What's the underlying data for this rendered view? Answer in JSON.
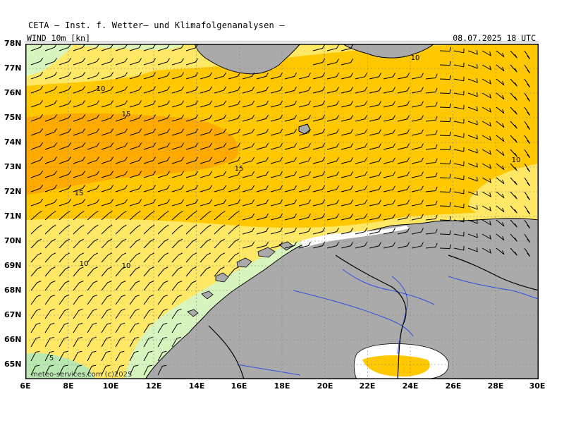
{
  "header": {
    "title": "CETA — Inst. f. Wetter— und Klimafolgenanalysen —",
    "field_label": "WIND 10m [kn]",
    "valid_time": "08.07.2025 18 UTC"
  },
  "credit": "meteo-services.com (c)2025",
  "axes": {
    "lat_labels": [
      "78N",
      "77N",
      "76N",
      "75N",
      "74N",
      "73N",
      "72N",
      "71N",
      "70N",
      "69N",
      "68N",
      "67N",
      "66N",
      "65N"
    ],
    "lon_labels": [
      "6E",
      "8E",
      "10E",
      "12E",
      "14E",
      "16E",
      "18E",
      "20E",
      "22E",
      "24E",
      "26E",
      "28E",
      "30E"
    ]
  },
  "legend_colors": {
    "lt5": "#b8e8b0",
    "kn5_10": "#d8f5c0",
    "kn10_15": "#ffe866",
    "kn15_20": "#ffc800",
    "kn20_25": "#ffaa00",
    "land": "#aaaaaa",
    "river": "#3050e0"
  },
  "contour_labels": [
    {
      "value": "10"
    },
    {
      "value": "15"
    },
    {
      "value": "15"
    },
    {
      "value": "15"
    },
    {
      "value": "10"
    },
    {
      "value": "10"
    },
    {
      "value": "10"
    },
    {
      "value": "10"
    },
    {
      "value": "5"
    }
  ]
}
